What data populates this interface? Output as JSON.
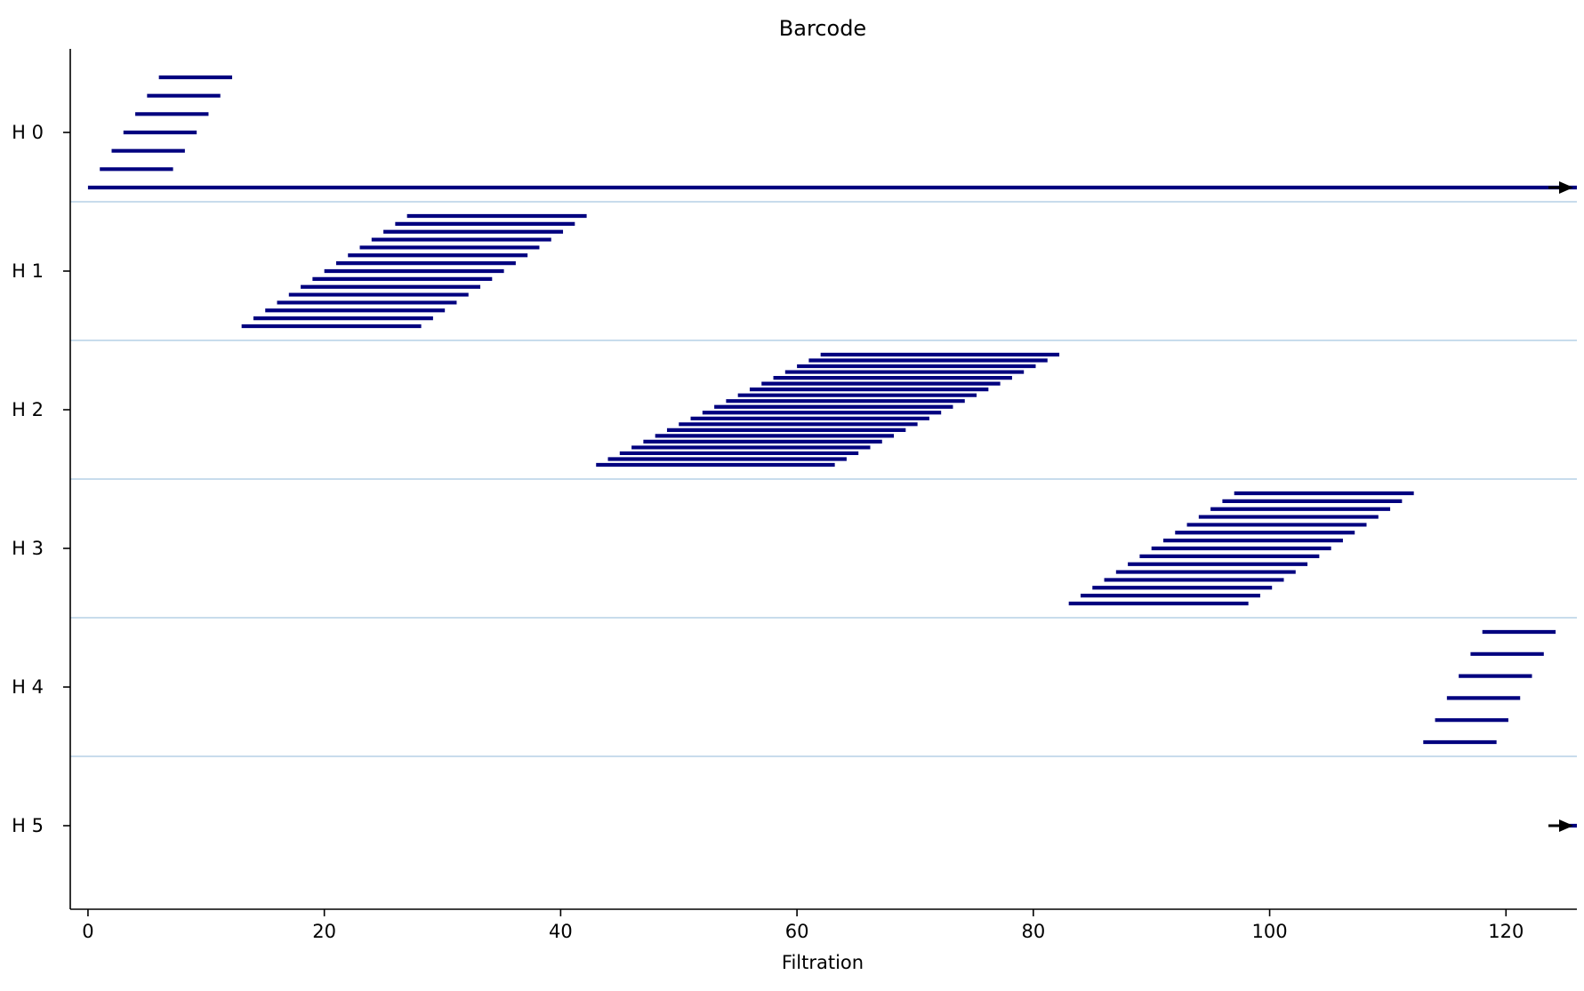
{
  "chart_data": {
    "type": "barcode",
    "title": "Barcode",
    "xlabel": "Filtration",
    "ylabel": "",
    "xlim": [
      -1.5,
      126
    ],
    "x_ticks": [
      0,
      20,
      40,
      60,
      80,
      100,
      120
    ],
    "x_tick_labels": [
      "0",
      "20",
      "40",
      "60",
      "80",
      "100",
      "120"
    ],
    "y_tick_labels": [
      "H 0",
      "H 1",
      "H 2",
      "H 3",
      "H 4",
      "H 5"
    ],
    "grid": false,
    "colors": {
      "bar": "#00007f",
      "separator": "#a6c8e0",
      "arrow": "#000000",
      "axis": "#000000"
    },
    "groups": [
      {
        "dimension": "H 0",
        "bars": [
          {
            "birth": 6,
            "death": 12.2
          },
          {
            "birth": 5,
            "death": 11.2
          },
          {
            "birth": 4,
            "death": 10.2
          },
          {
            "birth": 3,
            "death": 9.2
          },
          {
            "birth": 2,
            "death": 8.2
          },
          {
            "birth": 1,
            "death": 7.2
          },
          {
            "birth": 0,
            "death": "inf"
          }
        ]
      },
      {
        "dimension": "H 1",
        "bars": [
          {
            "birth": 27,
            "death": 42.2
          },
          {
            "birth": 26,
            "death": 41.2
          },
          {
            "birth": 25,
            "death": 40.2
          },
          {
            "birth": 24,
            "death": 39.2
          },
          {
            "birth": 23,
            "death": 38.2
          },
          {
            "birth": 22,
            "death": 37.2
          },
          {
            "birth": 21,
            "death": 36.2
          },
          {
            "birth": 20,
            "death": 35.2
          },
          {
            "birth": 19,
            "death": 34.2
          },
          {
            "birth": 18,
            "death": 33.2
          },
          {
            "birth": 17,
            "death": 32.2
          },
          {
            "birth": 16,
            "death": 31.2
          },
          {
            "birth": 15,
            "death": 30.2
          },
          {
            "birth": 14,
            "death": 29.2
          },
          {
            "birth": 13,
            "death": 28.2
          }
        ]
      },
      {
        "dimension": "H 2",
        "bars": [
          {
            "birth": 62,
            "death": 82.2
          },
          {
            "birth": 61,
            "death": 81.2
          },
          {
            "birth": 60,
            "death": 80.2
          },
          {
            "birth": 59,
            "death": 79.2
          },
          {
            "birth": 58,
            "death": 78.2
          },
          {
            "birth": 57,
            "death": 77.2
          },
          {
            "birth": 56,
            "death": 76.2
          },
          {
            "birth": 55,
            "death": 75.2
          },
          {
            "birth": 54,
            "death": 74.2
          },
          {
            "birth": 53,
            "death": 73.2
          },
          {
            "birth": 52,
            "death": 72.2
          },
          {
            "birth": 51,
            "death": 71.2
          },
          {
            "birth": 50,
            "death": 70.2
          },
          {
            "birth": 49,
            "death": 69.2
          },
          {
            "birth": 48,
            "death": 68.2
          },
          {
            "birth": 47,
            "death": 67.2
          },
          {
            "birth": 46,
            "death": 66.2
          },
          {
            "birth": 45,
            "death": 65.2
          },
          {
            "birth": 44,
            "death": 64.2
          },
          {
            "birth": 43,
            "death": 63.2
          }
        ]
      },
      {
        "dimension": "H 3",
        "bars": [
          {
            "birth": 97,
            "death": 112.2
          },
          {
            "birth": 96,
            "death": 111.2
          },
          {
            "birth": 95,
            "death": 110.2
          },
          {
            "birth": 94,
            "death": 109.2
          },
          {
            "birth": 93,
            "death": 108.2
          },
          {
            "birth": 92,
            "death": 107.2
          },
          {
            "birth": 91,
            "death": 106.2
          },
          {
            "birth": 90,
            "death": 105.2
          },
          {
            "birth": 89,
            "death": 104.2
          },
          {
            "birth": 88,
            "death": 103.2
          },
          {
            "birth": 87,
            "death": 102.2
          },
          {
            "birth": 86,
            "death": 101.2
          },
          {
            "birth": 85,
            "death": 100.2
          },
          {
            "birth": 84,
            "death": 99.2
          },
          {
            "birth": 83,
            "death": 98.2
          }
        ]
      },
      {
        "dimension": "H 4",
        "bars": [
          {
            "birth": 118,
            "death": 124.2
          },
          {
            "birth": 117,
            "death": 123.2
          },
          {
            "birth": 116,
            "death": 122.2
          },
          {
            "birth": 115,
            "death": 121.2
          },
          {
            "birth": 114,
            "death": 120.2
          },
          {
            "birth": 113,
            "death": 119.2
          }
        ]
      },
      {
        "dimension": "H 5",
        "bars": [
          {
            "birth": 125,
            "death": "inf"
          }
        ]
      }
    ]
  }
}
